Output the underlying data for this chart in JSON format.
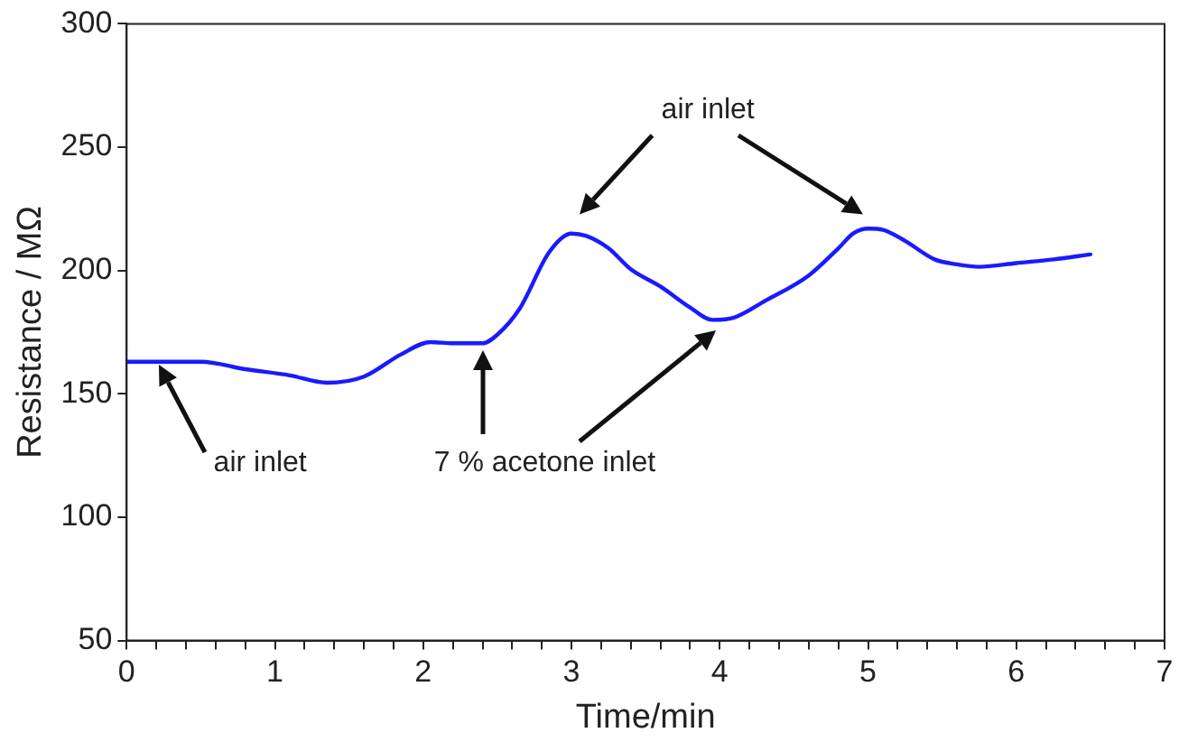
{
  "chart_data": {
    "type": "line",
    "xlabel": "Time/min",
    "ylabel": "Resistance / MΩ",
    "x": [
      0,
      0.5,
      0.8,
      1.1,
      1.35,
      1.6,
      1.85,
      2.05,
      2.2,
      2.4,
      2.5,
      2.65,
      2.85,
      3.0,
      3.1,
      3.25,
      3.4,
      3.6,
      3.8,
      3.95,
      4.1,
      4.3,
      4.6,
      4.8,
      4.9,
      5.0,
      5.1,
      5.25,
      5.45,
      5.6,
      5.75,
      6.0,
      6.25,
      6.5
    ],
    "series": [
      {
        "color": "#1a1aff",
        "values": [
          163,
          163,
          160,
          157.5,
          154.5,
          157,
          166,
          171,
          170.5,
          170.5,
          174,
          184.5,
          207.5,
          215,
          214,
          209,
          200.5,
          193.5,
          185,
          180,
          181,
          187.5,
          198,
          209,
          215,
          217,
          216.5,
          212,
          204.5,
          202.5,
          201.5,
          203,
          204.5,
          206.5
        ]
      }
    ],
    "xlim": [
      0,
      7
    ],
    "ylim": [
      50,
      300
    ],
    "xticks": [
      0,
      {
        "value": 0.2,
        "label": null
      },
      {
        "value": 0.4,
        "label": null
      },
      {
        "value": 0.6,
        "label": null
      },
      {
        "value": 0.8,
        "label": null
      },
      1,
      {
        "value": 1.2,
        "label": null
      },
      {
        "value": 1.4,
        "label": null
      },
      {
        "value": 1.6,
        "label": null
      },
      {
        "value": 1.8,
        "label": null
      },
      2,
      {
        "value": 2.2,
        "label": null
      },
      {
        "value": 2.4,
        "label": null
      },
      {
        "value": 2.6,
        "label": null
      },
      {
        "value": 2.8,
        "label": null
      },
      3,
      {
        "value": 3.2,
        "label": null
      },
      {
        "value": 3.4,
        "label": null
      },
      {
        "value": 3.6,
        "label": null
      },
      {
        "value": 3.8,
        "label": null
      },
      4,
      {
        "value": 4.2,
        "label": null
      },
      {
        "value": 4.4,
        "label": null
      },
      {
        "value": 4.6,
        "label": null
      },
      {
        "value": 4.8,
        "label": null
      },
      5,
      {
        "value": 5.2,
        "label": null
      },
      {
        "value": 5.4,
        "label": null
      },
      {
        "value": 5.6,
        "label": null
      },
      {
        "value": 5.8,
        "label": null
      },
      6,
      {
        "value": 6.2,
        "label": null
      },
      {
        "value": 6.4,
        "label": null
      },
      {
        "value": 6.6,
        "label": null
      },
      {
        "value": 6.8,
        "label": null
      },
      7
    ],
    "yticks": [
      50,
      100,
      150,
      200,
      250,
      300
    ],
    "grid": false,
    "legend": false,
    "marker": "none",
    "line_style": "solid",
    "annotations": [
      "air inlet",
      "7 % acetone inlet",
      "air inlet"
    ]
  }
}
